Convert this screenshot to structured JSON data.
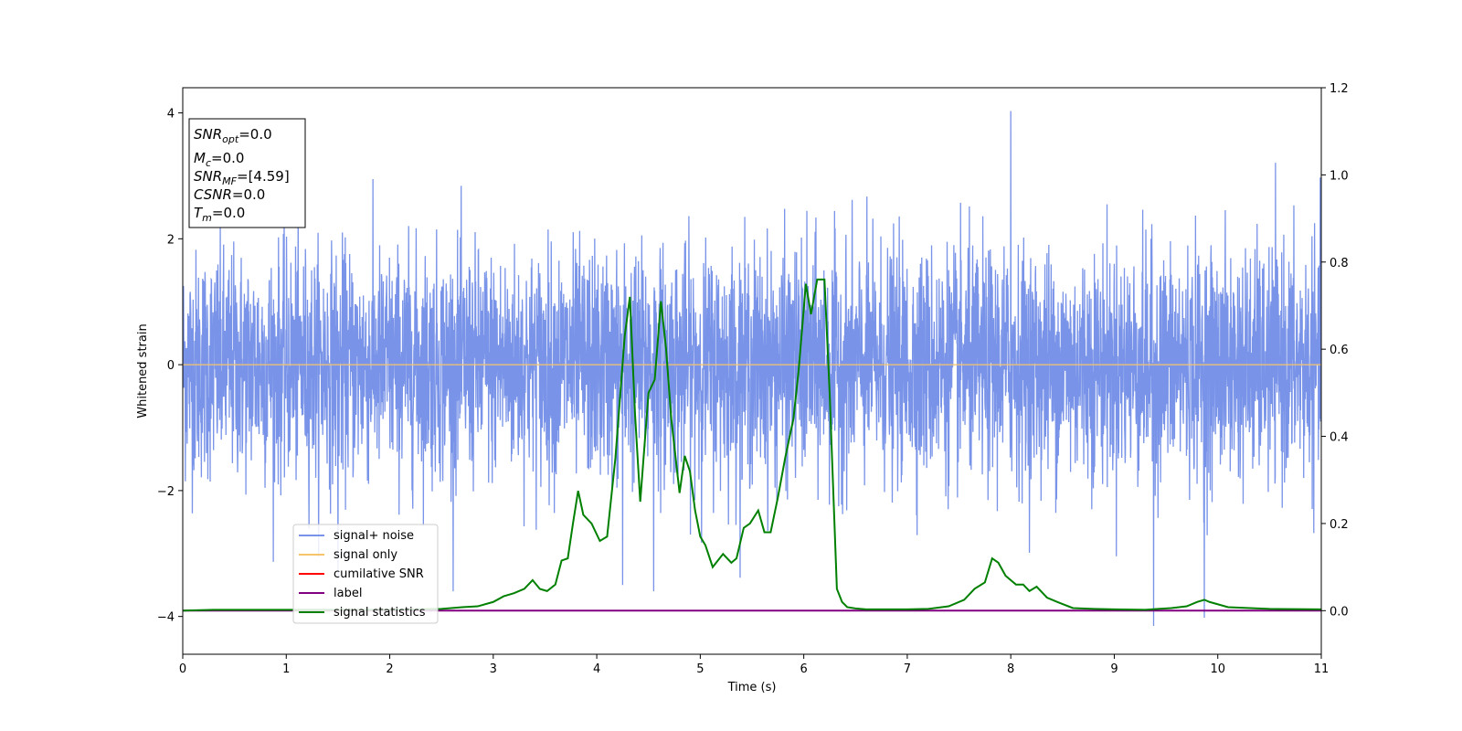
{
  "chart_data": {
    "type": "line",
    "xlabel": "Time (s)",
    "ylabel_left": "Whitened strain",
    "ylabel_right": "",
    "xlim": [
      0,
      11
    ],
    "ylim_left": [
      -4.6,
      4.4
    ],
    "ylim_right": [
      -0.1,
      1.2
    ],
    "x_ticks": [
      "0",
      "1",
      "2",
      "3",
      "4",
      "5",
      "6",
      "7",
      "8",
      "9",
      "10",
      "11"
    ],
    "y_ticks_left": [
      "−4",
      "−2",
      "0",
      "2",
      "4"
    ],
    "y_ticks_right": [
      "0.0",
      "0.2",
      "0.4",
      "0.6",
      "0.8",
      "1.0",
      "1.2"
    ],
    "grid": false,
    "legend_position": "lower-left",
    "stats_box": {
      "snr_opt": {
        "sym": "SNR",
        "sub": "opt",
        "val": "=0.0"
      },
      "mc": {
        "sym": "M",
        "sub": "c",
        "val": "=0.0"
      },
      "snr_mf": {
        "sym": "SNR",
        "sub": "MF",
        "val": "=[4.59]"
      },
      "csnr": {
        "sym": "CSNR",
        "sub": "",
        "val": "=0.0"
      },
      "tm": {
        "sym": "T",
        "sub": "m",
        "val": "=0.0"
      }
    },
    "series": [
      {
        "name": "signal+ noise",
        "axis": "left",
        "color": "#7893e8",
        "style": "noise",
        "x_range": [
          0,
          11
        ],
        "std": 0.9,
        "extremes": [
          [
            8.0,
            4.03
          ],
          [
            9.38,
            -4.15
          ],
          [
            9.87,
            -4.02
          ],
          [
            4.55,
            -3.6
          ],
          [
            1.5,
            -3.4
          ],
          [
            4.25,
            -3.5
          ]
        ]
      },
      {
        "name": "signal only",
        "axis": "left",
        "color": "#f6c46a",
        "x": [
          0,
          11
        ],
        "y": [
          0,
          0
        ]
      },
      {
        "name": "cumilative SNR",
        "axis": "right",
        "color": "#ff0000",
        "x": [],
        "y": []
      },
      {
        "name": "label",
        "axis": "right",
        "color": "#800080",
        "x": [
          0,
          11
        ],
        "y": [
          0,
          0
        ]
      },
      {
        "name": "signal statistics",
        "axis": "right",
        "color": "#008000",
        "x": [
          0,
          0.3,
          1.0,
          2.0,
          2.5,
          2.7,
          2.85,
          3.0,
          3.1,
          3.2,
          3.3,
          3.38,
          3.45,
          3.52,
          3.6,
          3.66,
          3.72,
          3.77,
          3.82,
          3.87,
          3.95,
          4.03,
          4.1,
          4.18,
          4.27,
          4.32,
          4.37,
          4.42,
          4.5,
          4.56,
          4.62,
          4.67,
          4.72,
          4.8,
          4.85,
          4.9,
          4.95,
          5.0,
          5.05,
          5.12,
          5.22,
          5.3,
          5.35,
          5.42,
          5.48,
          5.56,
          5.62,
          5.68,
          5.75,
          5.82,
          5.9,
          5.95,
          6.02,
          6.07,
          6.13,
          6.2,
          6.25,
          6.32,
          6.37,
          6.42,
          6.5,
          6.6,
          6.8,
          7.0,
          7.2,
          7.4,
          7.55,
          7.65,
          7.75,
          7.82,
          7.88,
          7.95,
          8.05,
          8.12,
          8.18,
          8.25,
          8.35,
          8.45,
          8.6,
          8.8,
          9.0,
          9.3,
          9.55,
          9.7,
          9.8,
          9.87,
          9.92,
          10.1,
          10.5,
          11.0
        ],
        "y": [
          0.0,
          0.002,
          0.002,
          0.002,
          0.004,
          0.008,
          0.01,
          0.02,
          0.033,
          0.04,
          0.05,
          0.07,
          0.05,
          0.045,
          0.06,
          0.115,
          0.12,
          0.2,
          0.275,
          0.22,
          0.2,
          0.16,
          0.17,
          0.35,
          0.63,
          0.72,
          0.45,
          0.25,
          0.5,
          0.53,
          0.71,
          0.6,
          0.44,
          0.27,
          0.355,
          0.32,
          0.23,
          0.17,
          0.15,
          0.1,
          0.13,
          0.11,
          0.12,
          0.19,
          0.2,
          0.23,
          0.18,
          0.18,
          0.26,
          0.35,
          0.44,
          0.55,
          0.75,
          0.68,
          0.76,
          0.76,
          0.5,
          0.05,
          0.02,
          0.008,
          0.005,
          0.003,
          0.003,
          0.003,
          0.004,
          0.01,
          0.025,
          0.05,
          0.065,
          0.12,
          0.11,
          0.08,
          0.06,
          0.06,
          0.045,
          0.055,
          0.03,
          0.02,
          0.006,
          0.004,
          0.003,
          0.002,
          0.006,
          0.01,
          0.02,
          0.025,
          0.02,
          0.008,
          0.004,
          0.003
        ]
      }
    ]
  }
}
